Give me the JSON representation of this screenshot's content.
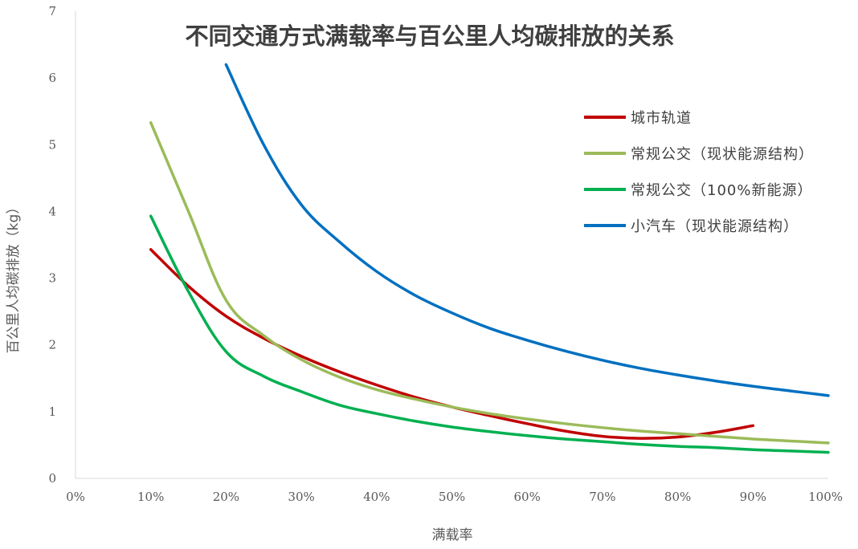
{
  "chart_data": {
    "type": "line",
    "title": "不同交通方式满载率与百公里人均碳排放的关系",
    "xlabel": "满载率",
    "ylabel": "百公里人均碳排放（kg）",
    "x_ticks": [
      "0%",
      "10%",
      "20%",
      "30%",
      "40%",
      "50%",
      "60%",
      "70%",
      "80%",
      "90%",
      "100%"
    ],
    "y_ticks": [
      "0",
      "1",
      "2",
      "3",
      "4",
      "5",
      "6",
      "7"
    ],
    "xlim": [
      0,
      100
    ],
    "ylim": [
      0,
      7
    ],
    "legend_position": "right",
    "series": [
      {
        "name": "城市轨道",
        "color": "#c00000",
        "x": [
          10,
          15,
          20,
          25,
          30,
          35,
          40,
          45,
          50,
          55,
          60,
          65,
          70,
          75,
          80,
          85,
          90
        ],
        "y": [
          3.43,
          2.88,
          2.43,
          2.1,
          1.83,
          1.6,
          1.4,
          1.22,
          1.07,
          0.94,
          0.82,
          0.71,
          0.63,
          0.6,
          0.62,
          0.69,
          0.79
        ]
      },
      {
        "name": "常规公交（现状能源结构）",
        "color": "#9bbb59",
        "x": [
          10,
          15,
          20,
          25,
          30,
          35,
          40,
          45,
          50,
          55,
          60,
          65,
          70,
          75,
          80,
          85,
          90,
          95,
          100
        ],
        "y": [
          5.33,
          4.0,
          2.67,
          2.14,
          1.78,
          1.52,
          1.33,
          1.19,
          1.07,
          0.97,
          0.89,
          0.82,
          0.76,
          0.71,
          0.67,
          0.63,
          0.59,
          0.56,
          0.53
        ]
      },
      {
        "name": "常规公交（100%新能源）",
        "color": "#00b050",
        "x": [
          10,
          15,
          20,
          25,
          30,
          35,
          40,
          45,
          50,
          55,
          60,
          65,
          70,
          75,
          80,
          85,
          90,
          95,
          100
        ],
        "y": [
          3.93,
          2.8,
          1.9,
          1.53,
          1.3,
          1.1,
          0.97,
          0.86,
          0.77,
          0.7,
          0.64,
          0.59,
          0.55,
          0.51,
          0.48,
          0.46,
          0.43,
          0.41,
          0.39
        ]
      },
      {
        "name": "小汽车（现状能源结构）",
        "color": "#0070c0",
        "x": [
          20,
          25,
          30,
          35,
          40,
          45,
          50,
          55,
          60,
          65,
          70,
          75,
          80,
          85,
          90,
          95,
          100
        ],
        "y": [
          6.2,
          5.0,
          4.1,
          3.55,
          3.1,
          2.75,
          2.48,
          2.25,
          2.07,
          1.91,
          1.77,
          1.65,
          1.55,
          1.46,
          1.38,
          1.31,
          1.24
        ]
      }
    ]
  }
}
